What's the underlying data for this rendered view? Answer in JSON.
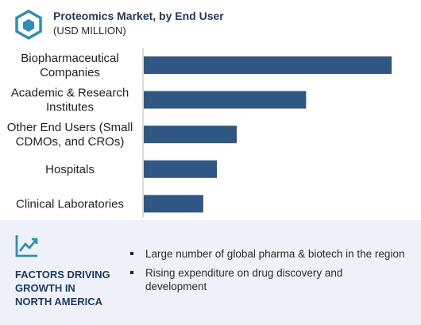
{
  "header": {
    "title": "Proteomics Market, by End User",
    "subtitle": "(USD MILLION)",
    "logo_icon": "cube-logo-icon"
  },
  "chart_data": {
    "type": "bar",
    "orientation": "horizontal",
    "title": "Proteomics Market, by End User",
    "subtitle": "(USD MILLION)",
    "categories": [
      [
        "Biopharmaceutical",
        "Companies"
      ],
      [
        "Academic & Research",
        "Institutes"
      ],
      [
        "Other End Users (Small",
        "CDMOs, and CROs)"
      ],
      [
        "Hospitals"
      ],
      [
        "Clinical Laboratories"
      ]
    ],
    "values": [
      100,
      65.5,
      37.5,
      29.5,
      24
    ],
    "xlim": [
      0,
      100
    ],
    "bar_color": "#2e5784",
    "axis_color": "#b8b8b8",
    "grid": false,
    "value_axis_shown": false
  },
  "factors": {
    "icon": "trend-line-icon",
    "title_lines": [
      "FACTORS DRIVING",
      "GROWTH IN",
      "NORTH AMERICA"
    ],
    "items": [
      "Large number of global pharma & biotech in the region",
      "Rising expenditure on drug discovery and development"
    ]
  },
  "colors": {
    "brand": "#1f3a5f",
    "accent": "#2e8fb5",
    "panel_bg": "#eef2f8"
  }
}
